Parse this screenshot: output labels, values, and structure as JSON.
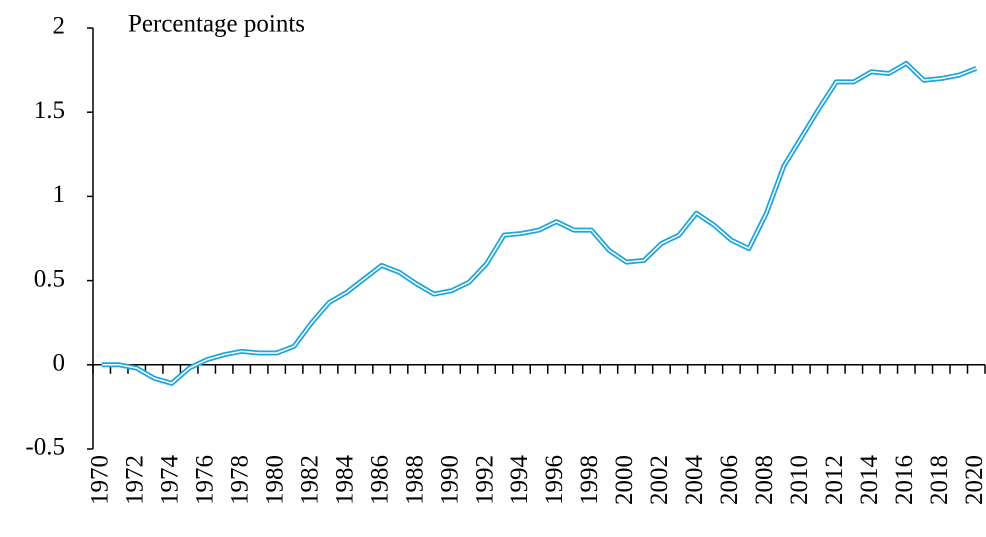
{
  "chart_data": {
    "type": "line",
    "title": "Percentage points",
    "categories": [
      "1970",
      null,
      "1972",
      null,
      "1974",
      null,
      "1976",
      null,
      "1978",
      null,
      "1980",
      null,
      "1982",
      null,
      "1984",
      null,
      "1986",
      null,
      "1988",
      null,
      "1990",
      null,
      "1992",
      null,
      "1994",
      null,
      "1996",
      null,
      "1998",
      null,
      "2000",
      null,
      "2002",
      null,
      "2004",
      null,
      "2006",
      null,
      "2008",
      null,
      "2010",
      null,
      "2012",
      null,
      "2014",
      null,
      "2016",
      null,
      "2018",
      null,
      "2020"
    ],
    "values": [
      0.0,
      0.0,
      -0.02,
      -0.08,
      -0.11,
      -0.02,
      0.03,
      0.06,
      0.08,
      0.07,
      0.07,
      0.11,
      0.25,
      0.37,
      0.43,
      0.51,
      0.59,
      0.55,
      0.48,
      0.42,
      0.44,
      0.49,
      0.6,
      0.77,
      0.78,
      0.8,
      0.85,
      0.8,
      0.8,
      0.68,
      0.61,
      0.62,
      0.72,
      0.77,
      0.9,
      0.83,
      0.74,
      0.69,
      0.9,
      1.18,
      1.35,
      1.52,
      1.68,
      1.68,
      1.74,
      1.73,
      1.79,
      1.69,
      1.7,
      1.72,
      1.76
    ],
    "color": "#1ea5dc",
    "ylim": [
      -0.5,
      2
    ],
    "yticks": [
      -0.5,
      0,
      0.5,
      1,
      1.5,
      2
    ]
  }
}
